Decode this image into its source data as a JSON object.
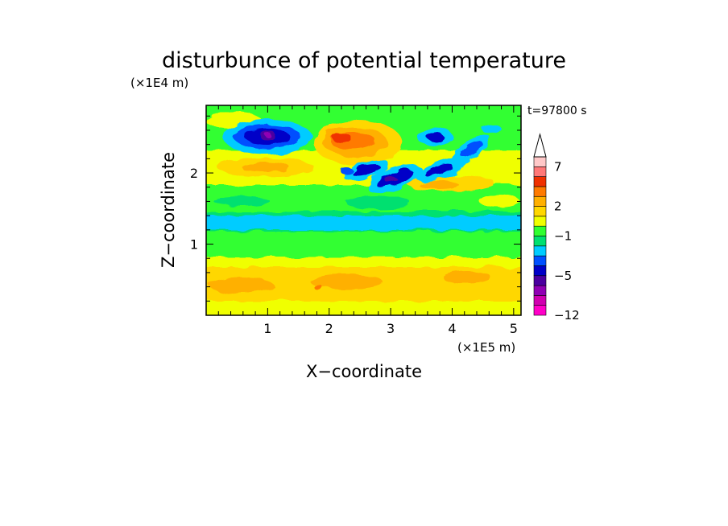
{
  "chart_data": {
    "type": "heatmap",
    "title": "disturbunce of potential temperature",
    "time_label": "t=97800 s",
    "xlabel": "X−coordinate",
    "ylabel": "Z−coordinate",
    "x_unit": "(×1E5 m)",
    "y_unit": "(×1E4 m)",
    "xlim": [
      0,
      5.12
    ],
    "ylim": [
      0,
      2.95
    ],
    "x_ticks": [
      "1",
      "2",
      "3",
      "4",
      "5"
    ],
    "y_ticks": [
      "1",
      "2"
    ],
    "colorbar": {
      "levels": [
        -12,
        -10,
        -8,
        -6,
        -5,
        -4,
        -3,
        -2,
        -1,
        0,
        1,
        2,
        3,
        4,
        5,
        7,
        9,
        11
      ],
      "colors": [
        "#ff00c8",
        "#d000b0",
        "#9000b4",
        "#4b00a0",
        "#0000c8",
        "#0050ff",
        "#00ccff",
        "#00e070",
        "#30ff30",
        "#f0ff00",
        "#ffd700",
        "#ffb000",
        "#ff7a00",
        "#f03000",
        "#ff7878",
        "#ffc8c8"
      ],
      "tick_labels": [
        "7",
        "2",
        "−1",
        "−5",
        "−12"
      ]
    },
    "features": [
      {
        "x": 1.0,
        "z": 2.45,
        "value": -10
      },
      {
        "x": 2.6,
        "z": 2.1,
        "value": -6
      },
      {
        "x": 3.0,
        "z": 1.9,
        "value": -8
      },
      {
        "x": 3.7,
        "z": 2.45,
        "value": -6
      },
      {
        "x": 4.1,
        "z": 2.4,
        "value": -5
      },
      {
        "x": 2.2,
        "z": 2.5,
        "value": 7
      },
      {
        "x": 2.6,
        "z": 2.35,
        "value": 4
      },
      {
        "x": 1.0,
        "z": 2.1,
        "value": 3
      },
      {
        "x": 3.7,
        "z": 1.75,
        "value": 3
      },
      {
        "x": 2.5,
        "z": 1.2,
        "value": -1
      },
      {
        "x": 2.5,
        "z": 0.45,
        "value": 2
      }
    ]
  }
}
